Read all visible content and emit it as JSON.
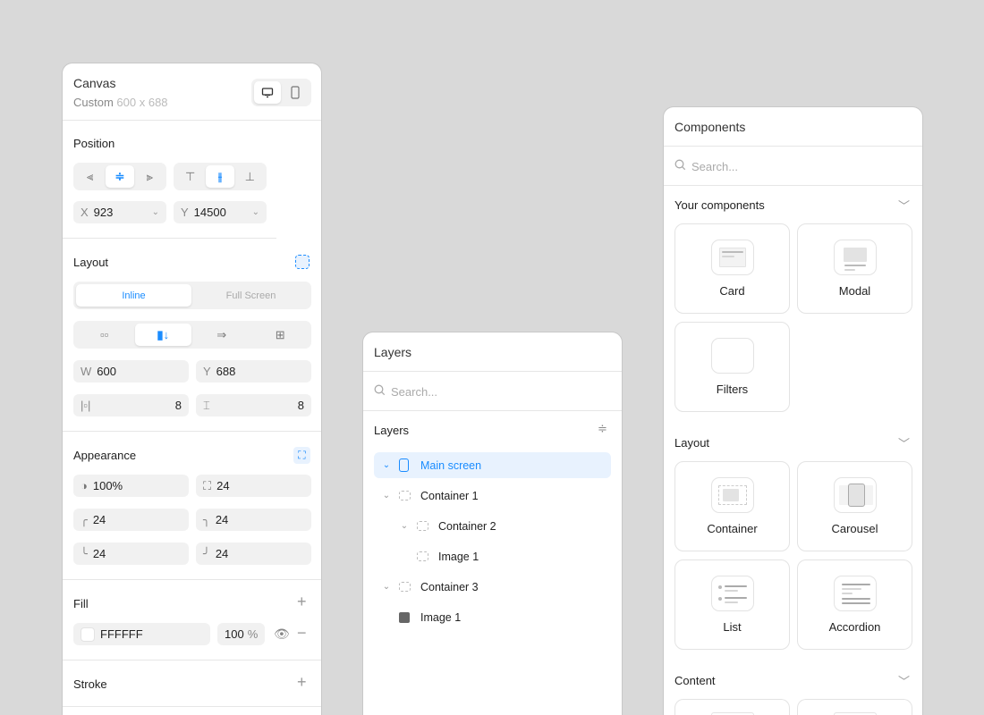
{
  "canvas": {
    "title": "Canvas",
    "preset": "Custom",
    "size": "600 x 688",
    "position": {
      "label": "Position",
      "x_label": "X",
      "x": "923",
      "y_label": "Y",
      "y": "14500"
    },
    "layout": {
      "label": "Layout",
      "modes": [
        "Inline",
        "Full Screen"
      ],
      "active_mode": "Inline",
      "w_label": "W",
      "w": "600",
      "h_label": "Y",
      "h": "688",
      "gap_h": "8",
      "gap_v": "8"
    },
    "appearance": {
      "label": "Appearance",
      "opacity": "100%",
      "radius": "24",
      "tl": "24",
      "tr": "24",
      "bl": "24",
      "br": "24"
    },
    "fill": {
      "label": "Fill",
      "color": "FFFFFF",
      "opacity": "100",
      "unit": "%"
    },
    "stroke": {
      "label": "Stroke"
    }
  },
  "layers": {
    "title": "Layers",
    "search_placeholder": "Search...",
    "section": "Layers",
    "items": [
      {
        "label": "Main screen"
      },
      {
        "label": "Container 1"
      },
      {
        "label": "Container 2"
      },
      {
        "label": "Image 1"
      },
      {
        "label": "Container 3"
      },
      {
        "label": "Image 1"
      }
    ]
  },
  "components": {
    "title": "Components",
    "search_placeholder": "Search...",
    "sections": [
      {
        "label": "Your components",
        "items": [
          "Card",
          "Modal",
          "Filters"
        ]
      },
      {
        "label": "Layout",
        "items": [
          "Container",
          "Carousel",
          "List",
          "Accordion"
        ]
      },
      {
        "label": "Content"
      }
    ]
  },
  "colors": {
    "accent": "#1a8cff",
    "background": "#d9d9d9"
  }
}
